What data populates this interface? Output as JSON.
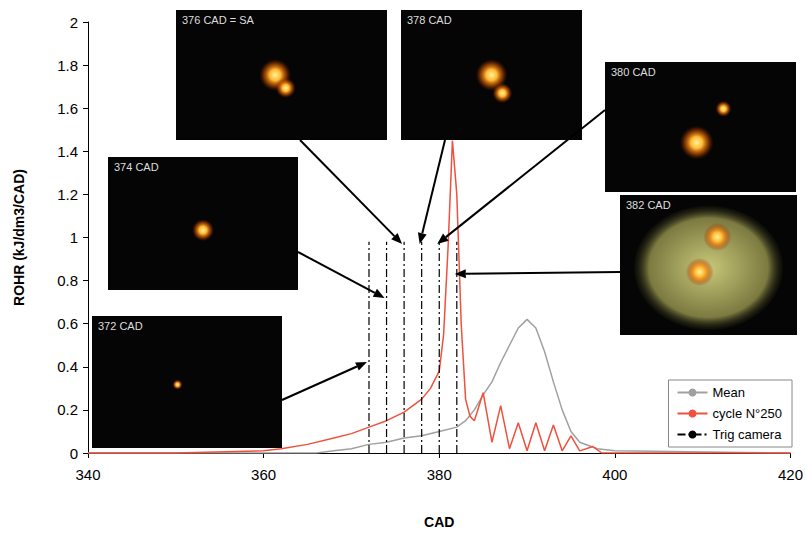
{
  "chart_data": {
    "type": "line",
    "xlabel": "CAD",
    "ylabel": "ROHR (kJ/dm3/CAD)",
    "xlim": [
      340,
      420
    ],
    "xticks": [
      340,
      360,
      380,
      400,
      420
    ],
    "ylim": [
      0,
      2
    ],
    "yticks": [
      0,
      0.2,
      0.4,
      0.6,
      0.8,
      1,
      1.2,
      1.4,
      1.6,
      1.8,
      2
    ],
    "grid": false,
    "legend": "lower right",
    "series": [
      {
        "name": "Mean",
        "color": "#a0a0a0",
        "line_style": "solid",
        "x": [
          340,
          366,
          368,
          370,
          372,
          374,
          376,
          378,
          380,
          382,
          383,
          384,
          385,
          386,
          387,
          388,
          389,
          390,
          391,
          392,
          393,
          394,
          395,
          396,
          398,
          400,
          420
        ],
        "values": [
          0,
          0,
          0.01,
          0.02,
          0.04,
          0.05,
          0.07,
          0.08,
          0.1,
          0.12,
          0.15,
          0.2,
          0.27,
          0.33,
          0.42,
          0.5,
          0.58,
          0.62,
          0.58,
          0.47,
          0.33,
          0.2,
          0.1,
          0.05,
          0.02,
          0.01,
          0
        ]
      },
      {
        "name": "cycle N°250",
        "color": "#f0503c",
        "line_style": "solid",
        "x": [
          340,
          350,
          360,
          362,
          365,
          368,
          370,
          372,
          374,
          376,
          378,
          379,
          380,
          380.5,
          381,
          381.5,
          382,
          382.5,
          383,
          383.5,
          384,
          385,
          386,
          387,
          388,
          389,
          390,
          391,
          392,
          393,
          394,
          395,
          396,
          397.5,
          398.5,
          400,
          420
        ],
        "values": [
          0,
          0,
          0.01,
          0.02,
          0.04,
          0.07,
          0.09,
          0.12,
          0.15,
          0.19,
          0.25,
          0.3,
          0.38,
          0.55,
          0.95,
          1.45,
          1.2,
          0.6,
          0.25,
          0.17,
          0.15,
          0.28,
          0.05,
          0.22,
          0.02,
          0.14,
          0.01,
          0.14,
          0.01,
          0.13,
          0.01,
          0.08,
          0.01,
          0.03,
          0,
          0,
          0
        ]
      },
      {
        "name": "Trig camera",
        "type": "vline",
        "color": "#000000",
        "line_style": "dashdot",
        "x": [
          372,
          374,
          376,
          378,
          380,
          382
        ],
        "values": [
          0.98,
          0.98,
          0.98,
          0.98,
          0.98,
          0.98
        ]
      }
    ],
    "annotations": [
      {
        "text": "372 CAD"
      },
      {
        "text": "374 CAD"
      },
      {
        "text": "376 CAD = SA"
      },
      {
        "text": "378 CAD"
      },
      {
        "text": "380 CAD"
      },
      {
        "text": "382 CAD"
      }
    ]
  }
}
